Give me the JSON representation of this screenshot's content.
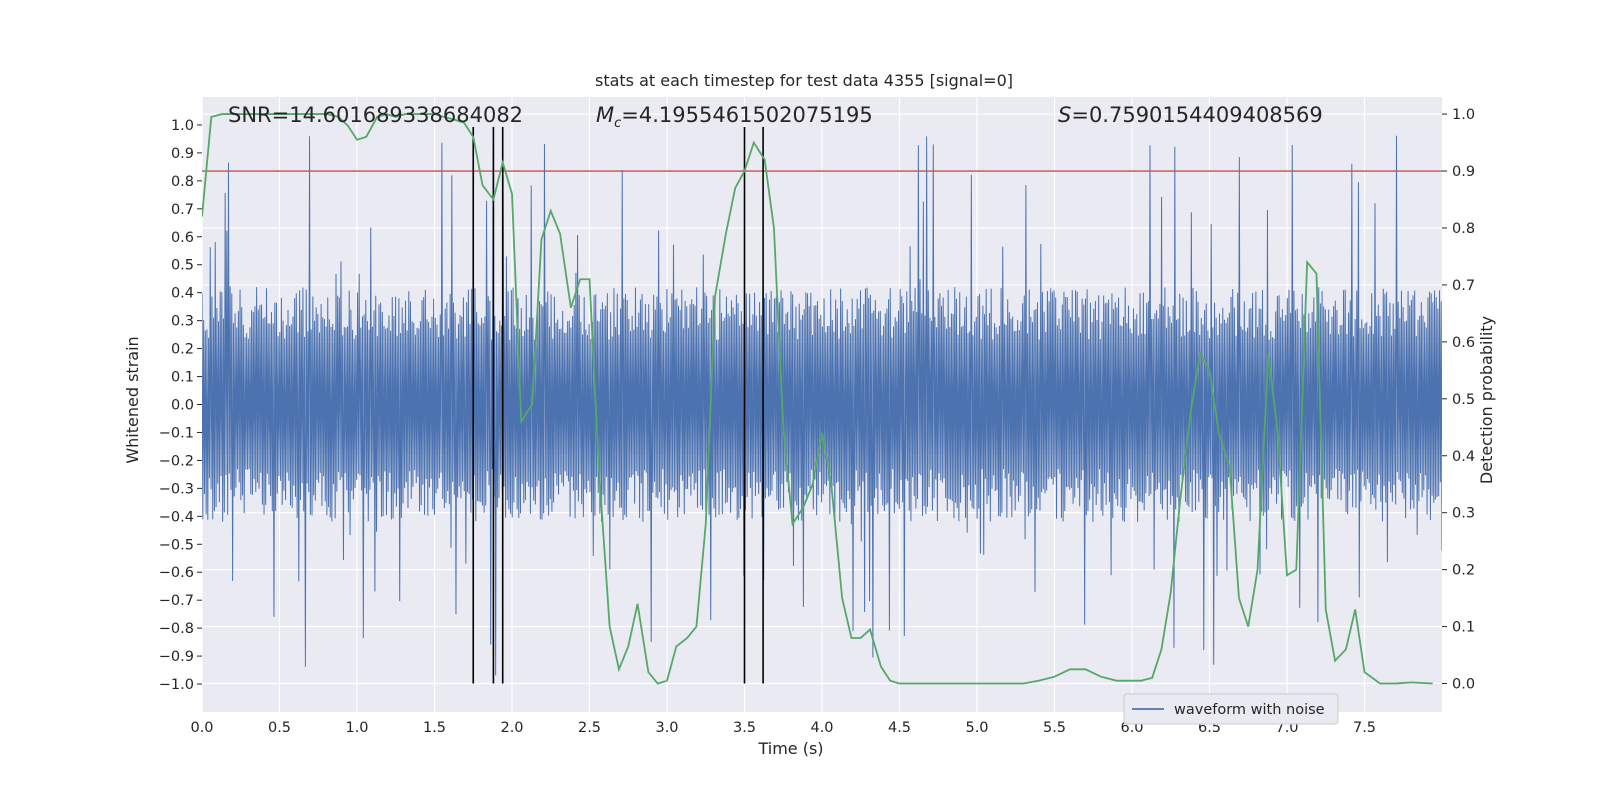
{
  "chart_data": {
    "type": "line",
    "title": "stats at each timestep for test data 4355 [signal=0]",
    "xlabel": "Time (s)",
    "ylabel_left": "Whitened strain",
    "ylabel_right": "Detection probability",
    "xlim": [
      0.0,
      8.0
    ],
    "ylim_left": [
      -1.1,
      1.1
    ],
    "ylim_right": [
      -0.05,
      1.03
    ],
    "x_ticks": [
      0.0,
      0.5,
      1.0,
      1.5,
      2.0,
      2.5,
      3.0,
      3.5,
      4.0,
      4.5,
      5.0,
      5.5,
      6.0,
      6.5,
      7.0,
      7.5
    ],
    "x_tick_labels": [
      "0.0",
      "0.5",
      "1.0",
      "1.5",
      "2.0",
      "2.5",
      "3.0",
      "3.5",
      "4.0",
      "4.5",
      "5.0",
      "5.5",
      "6.0",
      "6.5",
      "7.0",
      "7.5"
    ],
    "y_left_ticks": [
      1.0,
      0.9,
      0.8,
      0.7,
      0.6,
      0.5,
      0.4,
      0.3,
      0.2,
      0.1,
      0.0,
      -0.1,
      -0.2,
      -0.3,
      -0.4,
      -0.5,
      -0.6,
      -0.7,
      -0.8,
      -0.9,
      -1.0
    ],
    "y_left_tick_labels": [
      "1.0",
      "0.9",
      "0.8",
      "0.7",
      "0.6",
      "0.5",
      "0.4",
      "0.3",
      "0.2",
      "0.1",
      "0.0",
      "−0.1",
      "−0.2",
      "−0.3",
      "−0.4",
      "−0.5",
      "−0.6",
      "−0.7",
      "−0.8",
      "−0.9",
      "−1.0"
    ],
    "y_right_ticks": [
      0.0,
      0.1,
      0.2,
      0.3,
      0.4,
      0.5,
      0.6,
      0.7,
      0.8,
      0.9,
      1.0
    ],
    "y_right_tick_labels": [
      "0.0",
      "0.1",
      "0.2",
      "0.3",
      "0.4",
      "0.5",
      "0.6",
      "0.7",
      "0.8",
      "0.9",
      "1.0"
    ],
    "stats": {
      "snr": "SNR=14.601689338684082",
      "mc_symbol": "M",
      "mc_subscript": "c",
      "mc_value": "=4.1955461502075195",
      "s_symbol": "S",
      "s_value": "=0.7590154409408569"
    },
    "threshold": {
      "value": 0.9,
      "axis": "right",
      "color": "#c44e52"
    },
    "vertical_markers": [
      1.75,
      1.88,
      1.94,
      3.5,
      3.62
    ],
    "waveform": {
      "name": "waveform with noise",
      "color": "#4c72b0",
      "samples": 1500,
      "typical_amplitude": 0.42,
      "spike_max": 1.0,
      "spike_min": -1.0
    },
    "detection_probability": {
      "color": "#55a868",
      "x": [
        0.0,
        0.06,
        0.13,
        0.19,
        0.25,
        0.31,
        0.38,
        0.44,
        0.5,
        0.56,
        0.63,
        0.69,
        0.75,
        0.81,
        0.88,
        0.94,
        1.0,
        1.06,
        1.13,
        1.19,
        1.25,
        1.31,
        1.38,
        1.44,
        1.5,
        1.56,
        1.63,
        1.69,
        1.75,
        1.81,
        1.88,
        1.94,
        2.0,
        2.06,
        2.13,
        2.19,
        2.25,
        2.31,
        2.38,
        2.44,
        2.5,
        2.56,
        2.63,
        2.69,
        2.75,
        2.81,
        2.88,
        2.94,
        3.0,
        3.06,
        3.13,
        3.19,
        3.25,
        3.31,
        3.38,
        3.44,
        3.5,
        3.56,
        3.63,
        3.69,
        3.75,
        3.81,
        3.88,
        3.94,
        4.0,
        4.06,
        4.13,
        4.19,
        4.25,
        4.31,
        4.38,
        4.44,
        4.5,
        4.6,
        4.7,
        4.8,
        4.9,
        5.0,
        5.1,
        5.2,
        5.3,
        5.4,
        5.5,
        5.6,
        5.7,
        5.8,
        5.9,
        6.0,
        6.06,
        6.13,
        6.19,
        6.25,
        6.31,
        6.38,
        6.44,
        6.5,
        6.56,
        6.63,
        6.69,
        6.75,
        6.81,
        6.88,
        6.94,
        7.0,
        7.06,
        7.13,
        7.19,
        7.25,
        7.31,
        7.38,
        7.44,
        7.5,
        7.6,
        7.7,
        7.8,
        7.94
      ],
      "y": [
        0.82,
        0.995,
        1.0,
        1.0,
        1.0,
        1.0,
        1.0,
        1.0,
        1.0,
        1.0,
        1.0,
        1.0,
        1.0,
        1.0,
        0.995,
        0.98,
        0.955,
        0.96,
        0.995,
        1.0,
        0.995,
        1.0,
        1.0,
        1.0,
        1.0,
        0.995,
        0.99,
        0.985,
        0.96,
        0.875,
        0.85,
        0.915,
        0.86,
        0.46,
        0.49,
        0.78,
        0.83,
        0.79,
        0.66,
        0.71,
        0.71,
        0.38,
        0.1,
        0.025,
        0.065,
        0.14,
        0.02,
        0.0,
        0.005,
        0.065,
        0.08,
        0.1,
        0.28,
        0.68,
        0.79,
        0.87,
        0.9,
        0.95,
        0.92,
        0.8,
        0.45,
        0.28,
        0.31,
        0.35,
        0.44,
        0.35,
        0.15,
        0.08,
        0.08,
        0.095,
        0.03,
        0.005,
        0.0,
        0.0,
        0.0,
        0.0,
        0.0,
        0.0,
        0.0,
        0.0,
        0.0,
        0.005,
        0.012,
        0.025,
        0.025,
        0.012,
        0.005,
        0.005,
        0.005,
        0.01,
        0.06,
        0.16,
        0.32,
        0.48,
        0.58,
        0.55,
        0.44,
        0.38,
        0.15,
        0.1,
        0.2,
        0.58,
        0.44,
        0.19,
        0.2,
        0.74,
        0.72,
        0.13,
        0.04,
        0.06,
        0.13,
        0.02,
        0.0,
        0.0,
        0.002,
        0.0
      ]
    },
    "legend": {
      "placement": "bottom-right",
      "entries": [
        "waveform with noise"
      ]
    },
    "grid": true
  }
}
